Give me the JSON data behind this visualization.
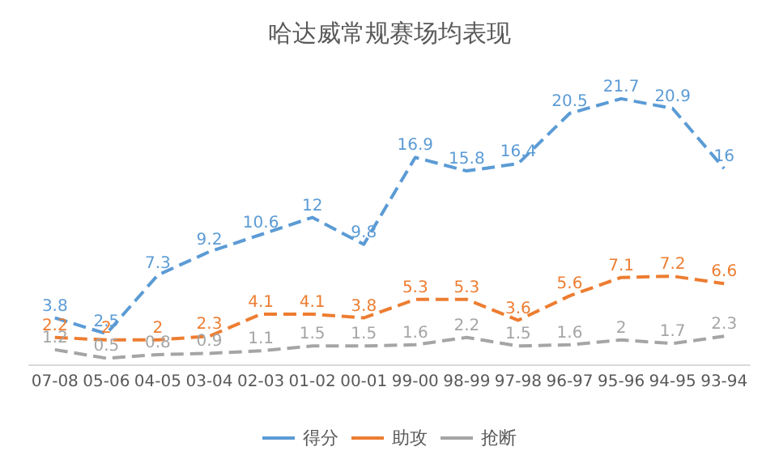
{
  "chart_data": {
    "type": "line",
    "title": "哈达威常规赛场均表现",
    "categories": [
      "07-08",
      "05-06",
      "04-05",
      "03-04",
      "02-03",
      "01-02",
      "00-01",
      "99-00",
      "98-99",
      "97-98",
      "96-97",
      "95-96",
      "94-95",
      "93-94"
    ],
    "series": [
      {
        "name": "得分",
        "color": "#5b9bd5",
        "values": [
          3.8,
          2.5,
          7.3,
          9.2,
          10.6,
          12,
          9.8,
          16.9,
          15.8,
          16.4,
          20.5,
          21.7,
          20.9,
          16
        ]
      },
      {
        "name": "助攻",
        "color": "#ed7d31",
        "values": [
          2.2,
          2,
          2,
          2.3,
          4.1,
          4.1,
          3.8,
          5.3,
          5.3,
          3.6,
          5.6,
          7.1,
          7.2,
          6.6
        ]
      },
      {
        "name": "抢断",
        "color": "#a5a5a5",
        "values": [
          1.2,
          0.5,
          0.8,
          0.9,
          1.1,
          1.5,
          1.5,
          1.6,
          2.2,
          1.5,
          1.6,
          2,
          1.7,
          2.3
        ]
      }
    ],
    "data_labels": true,
    "legend": "bottom",
    "line_style": "dashed",
    "marker": "none"
  }
}
